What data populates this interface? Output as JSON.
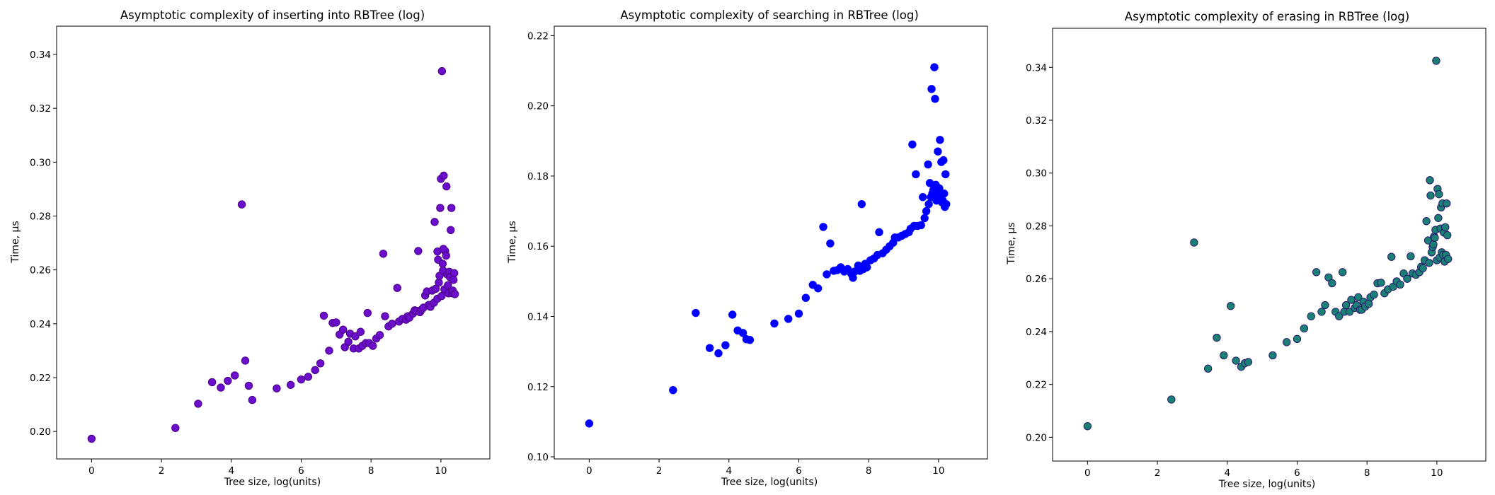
{
  "chart_data": [
    {
      "type": "scatter",
      "title": "Asymptotic complexity of inserting into RBTree (log)",
      "xlabel": "Tree size, log(units)",
      "ylabel": "Time, µs",
      "xlim": [
        -1.0,
        11.4
      ],
      "ylim": [
        0.1898,
        0.3505
      ],
      "xticks": [
        0,
        2,
        4,
        6,
        8,
        10
      ],
      "yticks": [
        0.2,
        0.22,
        0.24,
        0.26,
        0.28,
        0.3,
        0.32,
        0.34
      ],
      "tick_decimals": 2,
      "grid": false,
      "marker_fill": "#6a0dcc",
      "marker_edge": "#4b0082",
      "points": [
        [
          0,
          0.1973
        ],
        [
          2.4,
          0.2013
        ],
        [
          3.05,
          0.2103
        ],
        [
          3.45,
          0.2183
        ],
        [
          3.7,
          0.2163
        ],
        [
          3.9,
          0.2188
        ],
        [
          4.1,
          0.2208
        ],
        [
          4.3,
          0.2843
        ],
        [
          4.4,
          0.2263
        ],
        [
          4.5,
          0.217
        ],
        [
          4.6,
          0.2117
        ],
        [
          5.3,
          0.216
        ],
        [
          5.7,
          0.2173
        ],
        [
          6.0,
          0.2193
        ],
        [
          6.2,
          0.2203
        ],
        [
          6.4,
          0.2228
        ],
        [
          6.55,
          0.2253
        ],
        [
          6.65,
          0.243
        ],
        [
          6.8,
          0.23
        ],
        [
          6.9,
          0.2403
        ],
        [
          7.0,
          0.2405
        ],
        [
          7.1,
          0.236
        ],
        [
          7.2,
          0.2378
        ],
        [
          7.25,
          0.2313
        ],
        [
          7.35,
          0.2333
        ],
        [
          7.4,
          0.2363
        ],
        [
          7.5,
          0.2308
        ],
        [
          7.55,
          0.2353
        ],
        [
          7.65,
          0.2308
        ],
        [
          7.7,
          0.237
        ],
        [
          7.75,
          0.2318
        ],
        [
          7.85,
          0.2328
        ],
        [
          7.9,
          0.244
        ],
        [
          7.95,
          0.2328
        ],
        [
          8.05,
          0.2318
        ],
        [
          8.15,
          0.2345
        ],
        [
          8.25,
          0.2358
        ],
        [
          8.35,
          0.266
        ],
        [
          8.4,
          0.2428
        ],
        [
          8.5,
          0.239
        ],
        [
          8.6,
          0.24
        ],
        [
          8.75,
          0.2533
        ],
        [
          8.8,
          0.2408
        ],
        [
          8.9,
          0.2418
        ],
        [
          9.0,
          0.2415
        ],
        [
          9.05,
          0.2428
        ],
        [
          9.1,
          0.2423
        ],
        [
          9.2,
          0.2438
        ],
        [
          9.25,
          0.245
        ],
        [
          9.3,
          0.2448
        ],
        [
          9.35,
          0.267
        ],
        [
          9.4,
          0.2443
        ],
        [
          9.45,
          0.2453
        ],
        [
          9.5,
          0.246
        ],
        [
          9.55,
          0.2505
        ],
        [
          9.6,
          0.252
        ],
        [
          9.65,
          0.247
        ],
        [
          9.7,
          0.2463
        ],
        [
          9.75,
          0.2523
        ],
        [
          9.8,
          0.2478
        ],
        [
          9.82,
          0.2778
        ],
        [
          9.85,
          0.253
        ],
        [
          9.9,
          0.2493
        ],
        [
          9.92,
          0.2638
        ],
        [
          9.94,
          0.2553
        ],
        [
          9.96,
          0.2578
        ],
        [
          9.98,
          0.283
        ],
        [
          10.0,
          0.2938
        ],
        [
          10.02,
          0.2503
        ],
        [
          10.03,
          0.3338
        ],
        [
          10.05,
          0.2623
        ],
        [
          10.06,
          0.2598
        ],
        [
          10.08,
          0.295
        ],
        [
          10.1,
          0.2528
        ],
        [
          10.12,
          0.267
        ],
        [
          10.15,
          0.2653
        ],
        [
          10.16,
          0.291
        ],
        [
          10.18,
          0.2583
        ],
        [
          10.2,
          0.2543
        ],
        [
          10.22,
          0.2513
        ],
        [
          10.24,
          0.2593
        ],
        [
          10.26,
          0.2573
        ],
        [
          10.28,
          0.2748
        ],
        [
          10.3,
          0.283
        ],
        [
          10.32,
          0.2513
        ],
        [
          10.34,
          0.2523
        ],
        [
          10.36,
          0.2563
        ],
        [
          10.38,
          0.2588
        ],
        [
          10.4,
          0.251
        ],
        [
          9.9,
          0.2668
        ],
        [
          10.07,
          0.2678
        ]
      ]
    },
    {
      "type": "scatter",
      "title": "Asymptotic complexity of searching in RBTree (log)",
      "xlabel": "Tree size, log(units)",
      "ylabel": "Time, µs",
      "xlim": [
        -1.0,
        11.4
      ],
      "ylim": [
        0.0994,
        0.2227
      ],
      "xticks": [
        0,
        2,
        4,
        6,
        8,
        10
      ],
      "yticks": [
        0.1,
        0.12,
        0.14,
        0.16,
        0.18,
        0.2,
        0.22
      ],
      "tick_decimals": 2,
      "grid": false,
      "marker_fill": "#0000ff",
      "marker_edge": "#0000ff",
      "points": [
        [
          0,
          0.1095
        ],
        [
          2.4,
          0.119
        ],
        [
          3.05,
          0.141
        ],
        [
          3.45,
          0.131
        ],
        [
          3.7,
          0.1295
        ],
        [
          3.9,
          0.1318
        ],
        [
          4.1,
          0.1405
        ],
        [
          4.25,
          0.136
        ],
        [
          4.4,
          0.1353
        ],
        [
          4.5,
          0.1335
        ],
        [
          4.6,
          0.1333
        ],
        [
          5.3,
          0.138
        ],
        [
          5.7,
          0.1393
        ],
        [
          6.0,
          0.1408
        ],
        [
          6.2,
          0.1453
        ],
        [
          6.4,
          0.149
        ],
        [
          6.55,
          0.148
        ],
        [
          6.7,
          0.1655
        ],
        [
          6.8,
          0.152
        ],
        [
          6.9,
          0.1608
        ],
        [
          7.0,
          0.153
        ],
        [
          7.1,
          0.1532
        ],
        [
          7.2,
          0.154
        ],
        [
          7.3,
          0.1528
        ],
        [
          7.4,
          0.1535
        ],
        [
          7.5,
          0.1522
        ],
        [
          7.55,
          0.151
        ],
        [
          7.6,
          0.1528
        ],
        [
          7.7,
          0.1545
        ],
        [
          7.75,
          0.153
        ],
        [
          7.8,
          0.172
        ],
        [
          7.85,
          0.1535
        ],
        [
          7.9,
          0.155
        ],
        [
          7.95,
          0.154
        ],
        [
          8.05,
          0.156
        ],
        [
          8.15,
          0.1565
        ],
        [
          8.25,
          0.1575
        ],
        [
          8.3,
          0.164
        ],
        [
          8.4,
          0.158
        ],
        [
          8.5,
          0.159
        ],
        [
          8.6,
          0.16
        ],
        [
          8.7,
          0.161
        ],
        [
          8.75,
          0.1625
        ],
        [
          8.85,
          0.1625
        ],
        [
          8.95,
          0.163
        ],
        [
          9.05,
          0.1635
        ],
        [
          9.15,
          0.164
        ],
        [
          9.2,
          0.165
        ],
        [
          9.25,
          0.189
        ],
        [
          9.3,
          0.1658
        ],
        [
          9.35,
          0.1805
        ],
        [
          9.4,
          0.1658
        ],
        [
          9.5,
          0.166
        ],
        [
          9.55,
          0.174
        ],
        [
          9.6,
          0.168
        ],
        [
          9.65,
          0.17
        ],
        [
          9.7,
          0.1833
        ],
        [
          9.72,
          0.172
        ],
        [
          9.75,
          0.178
        ],
        [
          9.78,
          0.174
        ],
        [
          9.8,
          0.2048
        ],
        [
          9.82,
          0.175
        ],
        [
          9.85,
          0.176
        ],
        [
          9.88,
          0.211
        ],
        [
          9.9,
          0.202
        ],
        [
          9.92,
          0.1775
        ],
        [
          9.94,
          0.173
        ],
        [
          9.96,
          0.175
        ],
        [
          9.98,
          0.187
        ],
        [
          10.0,
          0.1735
        ],
        [
          10.02,
          0.1765
        ],
        [
          10.04,
          0.1903
        ],
        [
          10.06,
          0.1745
        ],
        [
          10.08,
          0.184
        ],
        [
          10.1,
          0.1725
        ],
        [
          10.12,
          0.173
        ],
        [
          10.14,
          0.1845
        ],
        [
          10.16,
          0.175
        ],
        [
          10.18,
          0.1712
        ],
        [
          10.2,
          0.1805
        ],
        [
          10.22,
          0.172
        ]
      ]
    },
    {
      "type": "scatter",
      "title": "Asymptotic complexity of erasing in RBTree (log)",
      "xlabel": "Tree size, log(units)",
      "ylabel": "Time, µs",
      "xlim": [
        -1.0,
        11.4
      ],
      "ylim": [
        0.191,
        0.3548
      ],
      "xticks": [
        0,
        2,
        4,
        6,
        8,
        10
      ],
      "yticks": [
        0.2,
        0.22,
        0.24,
        0.26,
        0.28,
        0.3,
        0.32,
        0.34
      ],
      "tick_decimals": 2,
      "grid": false,
      "marker_fill": "#1a7f74",
      "marker_edge": "#2b1a6e",
      "points": [
        [
          0,
          0.2042
        ],
        [
          2.4,
          0.2143
        ],
        [
          3.05,
          0.2737
        ],
        [
          3.45,
          0.226
        ],
        [
          3.7,
          0.2377
        ],
        [
          3.9,
          0.231
        ],
        [
          4.1,
          0.2497
        ],
        [
          4.25,
          0.229
        ],
        [
          4.4,
          0.2267
        ],
        [
          4.5,
          0.228
        ],
        [
          4.6,
          0.2285
        ],
        [
          5.3,
          0.231
        ],
        [
          5.7,
          0.236
        ],
        [
          6.0,
          0.2372
        ],
        [
          6.2,
          0.2412
        ],
        [
          6.4,
          0.2458
        ],
        [
          6.55,
          0.2625
        ],
        [
          6.7,
          0.2475
        ],
        [
          6.8,
          0.25
        ],
        [
          6.9,
          0.2605
        ],
        [
          7.0,
          0.2583
        ],
        [
          7.1,
          0.2475
        ],
        [
          7.2,
          0.2458
        ],
        [
          7.3,
          0.2625
        ],
        [
          7.35,
          0.2475
        ],
        [
          7.4,
          0.25
        ],
        [
          7.5,
          0.2475
        ],
        [
          7.55,
          0.252
        ],
        [
          7.65,
          0.249
        ],
        [
          7.7,
          0.25
        ],
        [
          7.75,
          0.253
        ],
        [
          7.8,
          0.2483
        ],
        [
          7.85,
          0.2483
        ],
        [
          7.9,
          0.2513
        ],
        [
          7.95,
          0.2495
        ],
        [
          8.05,
          0.2505
        ],
        [
          8.1,
          0.253
        ],
        [
          8.2,
          0.254
        ],
        [
          8.3,
          0.2583
        ],
        [
          8.4,
          0.2585
        ],
        [
          8.5,
          0.2545
        ],
        [
          8.6,
          0.256
        ],
        [
          8.7,
          0.2683
        ],
        [
          8.75,
          0.257
        ],
        [
          8.85,
          0.259
        ],
        [
          8.95,
          0.2578
        ],
        [
          9.05,
          0.262
        ],
        [
          9.15,
          0.26
        ],
        [
          9.25,
          0.2685
        ],
        [
          9.3,
          0.262
        ],
        [
          9.4,
          0.2615
        ],
        [
          9.5,
          0.2625
        ],
        [
          9.55,
          0.2645
        ],
        [
          9.6,
          0.264
        ],
        [
          9.65,
          0.267
        ],
        [
          9.7,
          0.2818
        ],
        [
          9.75,
          0.2745
        ],
        [
          9.78,
          0.266
        ],
        [
          9.8,
          0.2973
        ],
        [
          9.82,
          0.2915
        ],
        [
          9.85,
          0.27
        ],
        [
          9.88,
          0.272
        ],
        [
          9.9,
          0.273
        ],
        [
          9.92,
          0.276
        ],
        [
          9.94,
          0.2755
        ],
        [
          9.96,
          0.2785
        ],
        [
          9.98,
          0.3425
        ],
        [
          10.0,
          0.267
        ],
        [
          10.02,
          0.294
        ],
        [
          10.04,
          0.283
        ],
        [
          10.06,
          0.292
        ],
        [
          10.08,
          0.268
        ],
        [
          10.1,
          0.279
        ],
        [
          10.12,
          0.287
        ],
        [
          10.14,
          0.27
        ],
        [
          10.16,
          0.2885
        ],
        [
          10.18,
          0.269
        ],
        [
          10.2,
          0.2775
        ],
        [
          10.22,
          0.2665
        ],
        [
          10.24,
          0.2795
        ],
        [
          10.26,
          0.269
        ],
        [
          10.28,
          0.2885
        ],
        [
          10.3,
          0.2765
        ],
        [
          10.32,
          0.2675
        ]
      ]
    }
  ]
}
